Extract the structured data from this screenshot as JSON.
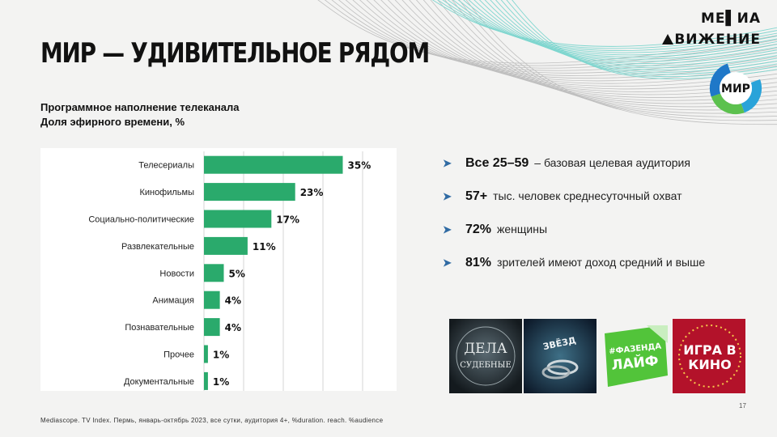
{
  "title": "МИР — УДИВИТЕЛЬНОЕ РЯДОМ",
  "brand": {
    "line1": "МЕ▌ИА",
    "line2": "ВИЖЕНИЕ"
  },
  "logo": {
    "text": "МИР"
  },
  "subtitle": {
    "line1": "Программное наполнение телеканала",
    "line2": "Доля эфирного времени, %"
  },
  "chart_data": {
    "type": "bar",
    "orientation": "horizontal",
    "categories": [
      "Телесериалы",
      "Кинофильмы",
      "Социально-политические",
      "Развлекательные",
      "Новости",
      "Анимация",
      "Познавательные",
      "Прочее",
      "Документальные"
    ],
    "values": [
      35,
      23,
      17,
      11,
      5,
      4,
      4,
      1,
      1
    ],
    "value_labels": [
      "35%",
      "23%",
      "17%",
      "11%",
      "5%",
      "4%",
      "4%",
      "1%",
      "1%"
    ],
    "xlim": [
      0,
      40
    ],
    "grid": true,
    "bar_color": "#2aaa6c"
  },
  "bullets": [
    {
      "big": "Все 25–59",
      "text": "– базовая целевая аудитория"
    },
    {
      "big": "57+",
      "text": "тыс. человек среднесуточный охват"
    },
    {
      "big": "72%",
      "text": "женщины"
    },
    {
      "big": "81%",
      "text": "зрителей имеют доход средний и выше"
    }
  ],
  "bullet_icon": "arrow-right-icon",
  "shows": [
    {
      "name": "show-dela-sudebnye",
      "lines": [
        "ДЕЛА",
        "СУДЕБНЫЕ"
      ]
    },
    {
      "name": "show-sojuz",
      "lines": [
        "ЗВЁЗД"
      ]
    },
    {
      "name": "show-fazenda",
      "lines": [
        "#ФАЗЕНДА",
        "ЛАЙФ"
      ]
    },
    {
      "name": "show-igra-v-kino",
      "lines": [
        "ИГРА В",
        "КИНО"
      ]
    }
  ],
  "source": "Mediascope. TV Index. Пермь, январь-октябрь 2023, все сутки, аудитория 4+, %duration. reach. %audience",
  "page_number": "17"
}
